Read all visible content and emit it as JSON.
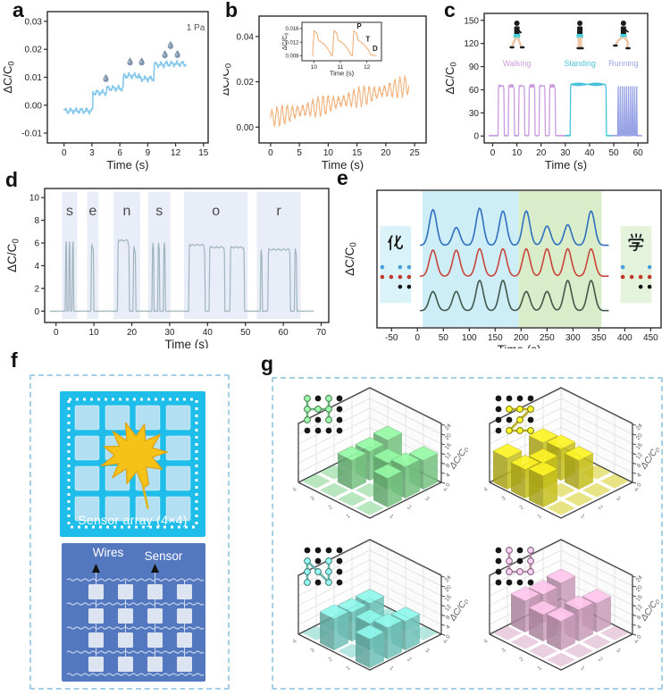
{
  "panel_labels": {
    "a": "a",
    "b": "b",
    "c": "c",
    "d": "d",
    "e": "e",
    "f": "f",
    "g": "g"
  },
  "panel_f": {
    "caption": "Sensor array (4×4)",
    "wires_label": "Wires",
    "sensor_label": "Sensor"
  },
  "chart_data": [
    {
      "id": "a",
      "type": "line",
      "xlabel": "Time (s)",
      "ylabel": "ΔC/C0",
      "annotation": "1 Pa",
      "xlim": [
        -1.8,
        15.5
      ],
      "ylim": [
        -0.0135,
        0.0335
      ],
      "xticks": [
        "0",
        "3",
        "6",
        "9",
        "12",
        "15"
      ],
      "yticks": [
        "-0.01",
        "0.00",
        "0.01",
        "0.02",
        "0.03"
      ],
      "color": "#85c8ec",
      "droplet_color": "#7e95ad",
      "steps": [
        [
          0,
          3.1,
          -0.002
        ],
        [
          3.1,
          4.6,
          0.0045
        ],
        [
          4.6,
          6.4,
          0.006
        ],
        [
          6.4,
          8.1,
          0.0105
        ],
        [
          8.1,
          9.7,
          0.0095
        ],
        [
          9.7,
          10.9,
          0.0145
        ],
        [
          10.9,
          13.2,
          0.0148
        ]
      ],
      "droplets": [
        [
          4.5,
          0.0078
        ],
        [
          7.1,
          0.0137
        ],
        [
          8.35,
          0.0137
        ],
        [
          10.85,
          0.0163
        ],
        [
          11.45,
          0.0196
        ],
        [
          12.2,
          0.0164
        ]
      ]
    },
    {
      "id": "b",
      "type": "line",
      "xlabel": "Time (s)",
      "ylabel": "ΔC/C0",
      "xlim": [
        -2,
        27
      ],
      "ylim": [
        -0.007,
        0.049
      ],
      "xticks": [
        "0",
        "5",
        "10",
        "15",
        "20",
        "25"
      ],
      "yticks": [
        "0.00",
        "0.02",
        "0.04"
      ],
      "color": "#f2b07a",
      "osc": {
        "t0": 0,
        "t1": 24,
        "base0": 0.004,
        "base1": 0.0185,
        "amp": 0.0042,
        "cycles": 27
      },
      "inset": {
        "xlabel": "Time (s)",
        "ylabel": "ΔC/C0",
        "xlim": [
          9.55,
          12.55
        ],
        "ylim": [
          0.0066,
          0.0178
        ],
        "xticks": [
          "10",
          "11",
          "12"
        ],
        "yticks": [
          "0.008",
          "0.012",
          "0.016"
        ],
        "pulse_starts": [
          9.95,
          10.7,
          11.45
        ],
        "pulse_shape": [
          [
            0,
            0.008
          ],
          [
            0.06,
            0.0153
          ],
          [
            0.16,
            0.0147
          ],
          [
            0.22,
            0.0126
          ],
          [
            0.34,
            0.012
          ],
          [
            0.46,
            0.0112
          ],
          [
            0.6,
            0.0098
          ],
          [
            0.7,
            0.0083
          ]
        ],
        "labels": [
          {
            "text": "P",
            "fx": 0.72,
            "fy": 0.16
          },
          {
            "text": "T",
            "fx": 0.83,
            "fy": 0.5
          },
          {
            "text": "D",
            "fx": 0.92,
            "fy": 0.74
          }
        ]
      }
    },
    {
      "id": "c",
      "type": "line",
      "xlabel": "Time (s)",
      "ylabel": "ΔC/C0",
      "xlim": [
        -3.5,
        64
      ],
      "ylim": [
        -9,
        159
      ],
      "xticks": [
        "0",
        "10",
        "20",
        "30",
        "40",
        "50",
        "60"
      ],
      "yticks": [
        "0",
        "30",
        "60",
        "90",
        "120",
        "150"
      ],
      "segments": [
        {
          "name": "Walking",
          "color": "#c99ae0",
          "kind": "train",
          "t0": 2.2,
          "t1": 27.6,
          "n": 6,
          "amp": 65,
          "duty": 0.62,
          "span": [
            -1.5,
            30
          ]
        },
        {
          "name": "Standing",
          "color": "#45c2da",
          "kind": "pulse",
          "t0": 32,
          "t1": 47,
          "amp": 67,
          "span": [
            30,
            49
          ]
        },
        {
          "name": "Running",
          "color": "#98a3e6",
          "kind": "train",
          "t0": 51.6,
          "t1": 60.1,
          "n": 10,
          "amp": 64,
          "duty": 0.5,
          "span": [
            49,
            61.5
          ]
        }
      ],
      "activity_labels": [
        {
          "text": "Walking",
          "x": 10,
          "color": "#cf9ede"
        },
        {
          "text": "Standing",
          "x": 36,
          "color": "#49c3d8"
        },
        {
          "text": "Running",
          "x": 54,
          "color": "#9aa5e8"
        }
      ]
    },
    {
      "id": "d",
      "type": "line",
      "xlabel": "Time (s)",
      "ylabel": "ΔC/C0",
      "xlim": [
        -3,
        72
      ],
      "ylim": [
        -1,
        10.8
      ],
      "xticks": [
        "0",
        "10",
        "20",
        "30",
        "40",
        "50",
        "60",
        "70"
      ],
      "yticks": [
        "0",
        "2",
        "4",
        "6",
        "8",
        "10"
      ],
      "color": "#9fb5bd",
      "band_color": "#e9edf7",
      "letter_color": "#4a4a4a",
      "letters": [
        "s",
        "e",
        "n",
        "s",
        "o",
        "r"
      ],
      "bands": [
        [
          1.6,
          5.6
        ],
        [
          8.2,
          11.2
        ],
        [
          15.2,
          22.2
        ],
        [
          24.3,
          30.2
        ],
        [
          33.8,
          50.6
        ],
        [
          53.0,
          64.6
        ]
      ],
      "pulses": [
        [
          2.4,
          2.9,
          6.1
        ],
        [
          3.3,
          3.8,
          6.1
        ],
        [
          4.2,
          4.7,
          6.1
        ],
        [
          9.2,
          10.0,
          5.9
        ],
        [
          16.2,
          19.4,
          6.3
        ],
        [
          20.3,
          21.1,
          5.7
        ],
        [
          25.3,
          25.9,
          6.0
        ],
        [
          26.8,
          27.4,
          6.0
        ],
        [
          28.3,
          28.9,
          6.0
        ],
        [
          35.0,
          39.4,
          5.9
        ],
        [
          40.4,
          44.6,
          5.7
        ],
        [
          45.9,
          49.8,
          5.7
        ],
        [
          53.9,
          54.5,
          5.4
        ],
        [
          55.9,
          61.9,
          5.5
        ],
        [
          62.9,
          63.6,
          5.5
        ]
      ]
    },
    {
      "id": "e",
      "type": "line",
      "xlabel": "Time (s)",
      "ylabel": "ΔC/C0",
      "xlim": [
        -78,
        470
      ],
      "xticks": [
        "-50",
        "0",
        "50",
        "100",
        "150",
        "200",
        "250",
        "300",
        "350",
        "400",
        "450"
      ],
      "peak_x": [
        30,
        75,
        120,
        165,
        210,
        250,
        290,
        335
      ],
      "sigma": 7,
      "series": [
        {
          "color": "#2f6fbe",
          "baseline": 0.4,
          "heights": [
            0.26,
            0.13,
            0.27,
            0.25,
            0.25,
            0.14,
            0.15,
            0.25
          ]
        },
        {
          "color": "#c8453a",
          "baseline": 0.625,
          "heights": [
            0.19,
            0.19,
            0.2,
            0.2,
            0.2,
            0.2,
            0.2,
            0.2
          ]
        },
        {
          "color": "#41584a",
          "baseline": 0.875,
          "heights": [
            0.14,
            0.14,
            0.22,
            0.22,
            0.14,
            0.14,
            0.22,
            0.22
          ]
        }
      ],
      "regions": [
        {
          "x0": 10,
          "x1": 195,
          "color": "#cdeef7"
        },
        {
          "x0": 195,
          "x1": 355,
          "color": "#d9edca"
        }
      ],
      "char_boxes": [
        {
          "char": "化",
          "glyph": "hua",
          "x0": -72,
          "x1": -12,
          "color": "#daf3f9",
          "dots": [
            [
              "b",
              0,
              "b",
              "b"
            ],
            [
              "r",
              "r",
              "r",
              "r"
            ],
            [
              0,
              0,
              "k",
              "k"
            ]
          ]
        },
        {
          "char": "学",
          "glyph": "xue",
          "x0": 392,
          "x1": 452,
          "color": "#e4f4dc",
          "dots": [
            [
              "b",
              0,
              0,
              "b"
            ],
            [
              "r",
              "r",
              "r",
              "r"
            ],
            [
              0,
              0,
              "k",
              "k"
            ]
          ]
        }
      ],
      "dot_colors": {
        "b": "#4a9fd8",
        "r": "#c0392b",
        "k": "#111111"
      }
    },
    {
      "id": "g1",
      "type": "bar3d",
      "zlabel": "ΔC/C0",
      "zticks": [
        0,
        4,
        8,
        12,
        16,
        20,
        24
      ],
      "axis_ticks": [
        "1",
        "2",
        "3",
        "4"
      ],
      "letter": "H",
      "color": "#7ed28b",
      "heights": [
        [
          12,
          0.5,
          13,
          0.5
        ],
        [
          13,
          11,
          12,
          0.5
        ],
        [
          12,
          0.5,
          12,
          0.5
        ],
        [
          0.5,
          0.5,
          0.5,
          0.5
        ]
      ],
      "dots": [
        [
          0,
          0
        ],
        [
          0,
          2
        ],
        [
          1,
          0
        ],
        [
          1,
          1
        ],
        [
          1,
          2
        ],
        [
          2,
          0
        ],
        [
          2,
          2
        ]
      ],
      "lines": [
        [
          [
            0,
            0
          ],
          [
            2,
            0
          ]
        ],
        [
          [
            0,
            2
          ],
          [
            2,
            2
          ]
        ],
        [
          [
            1,
            0
          ],
          [
            1,
            2
          ]
        ]
      ]
    },
    {
      "id": "g2",
      "type": "bar3d",
      "zlabel": "ΔC/C0",
      "zticks": [
        0,
        4,
        8,
        12,
        16,
        20,
        24
      ],
      "axis_ticks": [
        "1",
        "2",
        "3",
        "4"
      ],
      "letter": "Z",
      "color": "#d6ce20",
      "heights": [
        [
          0.5,
          0.5,
          0.5,
          0.5
        ],
        [
          0.5,
          12,
          13,
          12
        ],
        [
          0.5,
          0.5,
          11,
          0.5
        ],
        [
          0.5,
          13,
          12,
          13
        ]
      ],
      "dots": [
        [
          1,
          1
        ],
        [
          1,
          2
        ],
        [
          1,
          3
        ],
        [
          2,
          2
        ],
        [
          3,
          1
        ],
        [
          3,
          2
        ],
        [
          3,
          3
        ]
      ],
      "lines": [
        [
          [
            1,
            1
          ],
          [
            1,
            3
          ]
        ],
        [
          [
            1,
            3
          ],
          [
            3,
            1
          ]
        ],
        [
          [
            3,
            1
          ],
          [
            3,
            3
          ]
        ]
      ]
    },
    {
      "id": "g3",
      "type": "bar3d",
      "zlabel": "ΔC/C0",
      "zticks": [
        0,
        4,
        8,
        12,
        16,
        20,
        24
      ],
      "axis_ticks": [
        "1",
        "2",
        "3",
        "4"
      ],
      "letter": "N",
      "color": "#79d1c7",
      "heights": [
        [
          0.5,
          0.5,
          0.5,
          0.5
        ],
        [
          12,
          0.5,
          12,
          0.5
        ],
        [
          13,
          11,
          12,
          0.5
        ],
        [
          12,
          0.5,
          13,
          0.5
        ]
      ],
      "dots": [
        [
          1,
          0
        ],
        [
          2,
          0
        ],
        [
          3,
          0
        ],
        [
          2,
          1
        ],
        [
          1,
          2
        ],
        [
          2,
          2
        ],
        [
          3,
          2
        ]
      ],
      "lines": [
        [
          [
            1,
            0
          ],
          [
            3,
            0
          ]
        ],
        [
          [
            1,
            2
          ],
          [
            3,
            2
          ]
        ],
        [
          [
            1,
            0
          ],
          [
            3,
            2
          ]
        ]
      ]
    },
    {
      "id": "g4",
      "type": "bar3d",
      "zlabel": "ΔC/C0",
      "zticks": [
        0,
        4,
        8,
        12,
        16,
        20,
        24
      ],
      "axis_ticks": [
        "1",
        "2",
        "3",
        "4"
      ],
      "letter": "U",
      "color": "#d9a8c7",
      "heights": [
        [
          0.5,
          12,
          0.5,
          13
        ],
        [
          0.5,
          13,
          0.5,
          12
        ],
        [
          0.5,
          12,
          11,
          13
        ],
        [
          0.5,
          0.5,
          0.5,
          0.5
        ]
      ],
      "dots": [
        [
          0,
          1
        ],
        [
          0,
          3
        ],
        [
          1,
          1
        ],
        [
          1,
          3
        ],
        [
          2,
          1
        ],
        [
          2,
          2
        ],
        [
          2,
          3
        ]
      ],
      "lines": [
        [
          [
            0,
            1
          ],
          [
            2,
            1
          ]
        ],
        [
          [
            0,
            3
          ],
          [
            2,
            3
          ]
        ],
        [
          [
            2,
            1
          ],
          [
            2,
            3
          ]
        ]
      ]
    }
  ]
}
